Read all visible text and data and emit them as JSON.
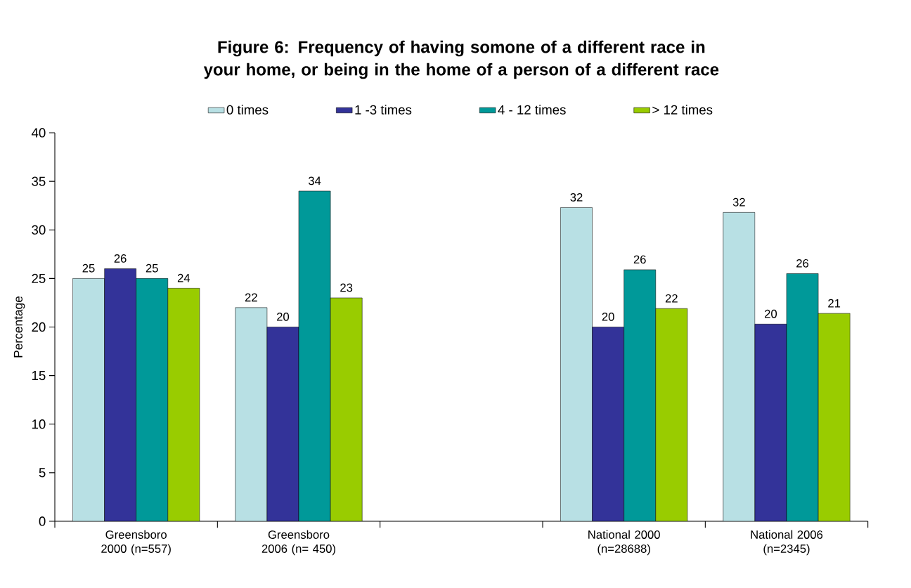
{
  "chart_data": {
    "type": "bar",
    "title": "Figure 6: Frequency of having somone of a different race in your home, or being in the home of a person of a different race",
    "ylabel": "Percentage",
    "categories": [
      "Greensboro 2000 (n=557)",
      "Greensboro 2006 (n= 450)",
      null,
      "National 2000 (n=28688)",
      "National 2006 (n=2345)"
    ],
    "series": [
      {
        "name": "0 times",
        "color": "#b8e0e4",
        "values": [
          25,
          22,
          null,
          32.3,
          31.8
        ],
        "value_labels": [
          "25",
          "22",
          null,
          "32",
          "32"
        ]
      },
      {
        "name": "1 -3 times",
        "color": "#333399",
        "values": [
          26,
          20,
          null,
          20,
          20.3
        ],
        "value_labels": [
          "26",
          "20",
          null,
          "20",
          "20"
        ]
      },
      {
        "name": "4 - 12 times",
        "color": "#009999",
        "values": [
          25,
          34,
          null,
          25.9,
          25.5
        ],
        "value_labels": [
          "25",
          "34",
          null,
          "26",
          "26"
        ]
      },
      {
        "name": "> 12 times",
        "color": "#99cc00",
        "values": [
          24,
          23,
          null,
          21.9,
          21.4
        ],
        "value_labels": [
          "24",
          "23",
          null,
          "22",
          "21"
        ]
      }
    ],
    "ylim": [
      0,
      40
    ],
    "yticks": [
      0,
      5,
      10,
      15,
      20,
      25,
      30,
      35,
      40
    ],
    "legend": "top",
    "grid": false
  }
}
